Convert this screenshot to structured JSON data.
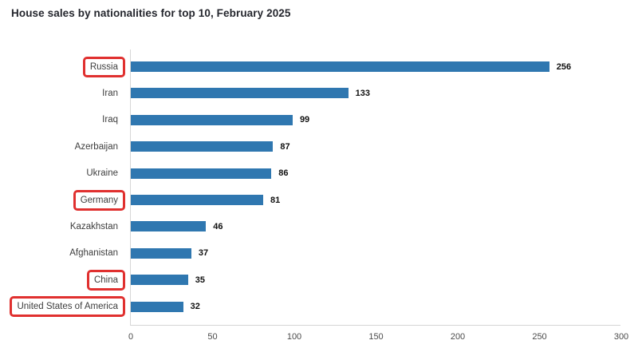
{
  "title": "House sales by nationalities for top 10, February 2025",
  "colors": {
    "background": "#ffffff",
    "bar": "#2f77b0",
    "highlight_box": "#e0302f",
    "axis_line": "#d6d6d6",
    "title_text": "#24262d",
    "category_text": "#3d3d3d",
    "value_text": "#111111",
    "tick_text": "#4b4b4b"
  },
  "chart_data": {
    "type": "bar",
    "orientation": "horizontal",
    "title": "House sales by nationalities for top 10, February 2025",
    "categories": [
      "Russia",
      "Iran",
      "Iraq",
      "Azerbaijan",
      "Ukraine",
      "Germany",
      "Kazakhstan",
      "Afghanistan",
      "China",
      "United States of America"
    ],
    "values": [
      256,
      133,
      99,
      87,
      86,
      81,
      46,
      37,
      35,
      32
    ],
    "value_labels": [
      "256",
      "133",
      "99",
      "87",
      "86",
      "81",
      "46",
      "37",
      "35",
      "32"
    ],
    "highlighted_categories": [
      "Russia",
      "Germany",
      "China",
      "United States of America"
    ],
    "xlabel": "",
    "ylabel": "",
    "xlim": [
      0,
      300
    ],
    "x_ticks": [
      0,
      50,
      100,
      150,
      200,
      250,
      300
    ],
    "grid": false,
    "legend": false
  }
}
